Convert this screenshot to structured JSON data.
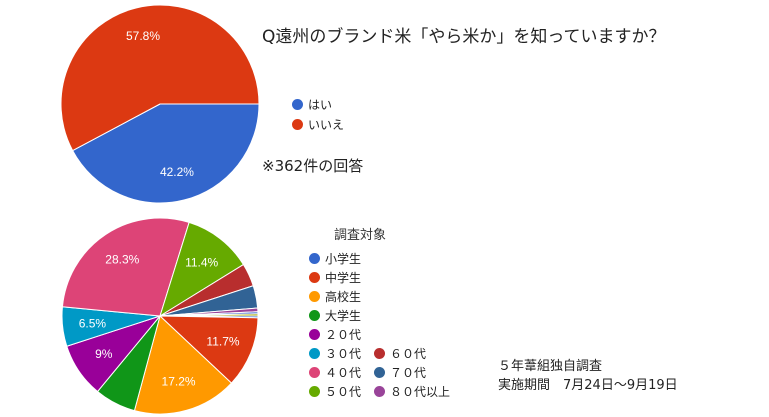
{
  "chart_data": [
    {
      "type": "pie",
      "title": "Q遠州のブランド米「やら米か」を知っていますか？",
      "note": "※362件の回答",
      "slices": [
        {
          "name": "はい",
          "value": 42.2,
          "label": "42.2%",
          "color": "#3366cc"
        },
        {
          "name": "いいえ",
          "value": 57.8,
          "label": "57.8%",
          "color": "#dc3912"
        }
      ]
    },
    {
      "type": "pie",
      "legend_title": "調査対象",
      "slices": [
        {
          "name": "小学生",
          "value": 0.3,
          "label": "",
          "color": "#3366cc"
        },
        {
          "name": "中学生",
          "value": 11.7,
          "label": "11.7%",
          "color": "#dc3912"
        },
        {
          "name": "高校生",
          "value": 17.2,
          "label": "17.2%",
          "color": "#ff9900"
        },
        {
          "name": "大学生",
          "value": 6.8,
          "label": "",
          "color": "#109618"
        },
        {
          "name": "２０代",
          "value": 9,
          "label": "9%",
          "color": "#990099"
        },
        {
          "name": "３０代",
          "value": 6.5,
          "label": "6.5%",
          "color": "#0099c6"
        },
        {
          "name": "４０代",
          "value": 28.3,
          "label": "28.3%",
          "color": "#dd4477"
        },
        {
          "name": "５０代",
          "value": 11.4,
          "label": "11.4%",
          "color": "#66aa00"
        },
        {
          "name": "６０代",
          "value": 3.8,
          "label": "",
          "color": "#b82e2e"
        },
        {
          "name": "７０代",
          "value": 3.7,
          "label": "",
          "color": "#316395"
        },
        {
          "name": "８０代以上",
          "value": 0.6,
          "label": "",
          "color": "#994499"
        },
        {
          "name": "",
          "value": 0.35,
          "label": "",
          "color": "#3366cc"
        },
        {
          "name": "",
          "value": 0.35,
          "label": "",
          "color": "#aaaa11"
        }
      ]
    }
  ],
  "footer": {
    "line1": "５年葦組独自調査",
    "line2": "実施期間　7月24日〜9月19日"
  }
}
